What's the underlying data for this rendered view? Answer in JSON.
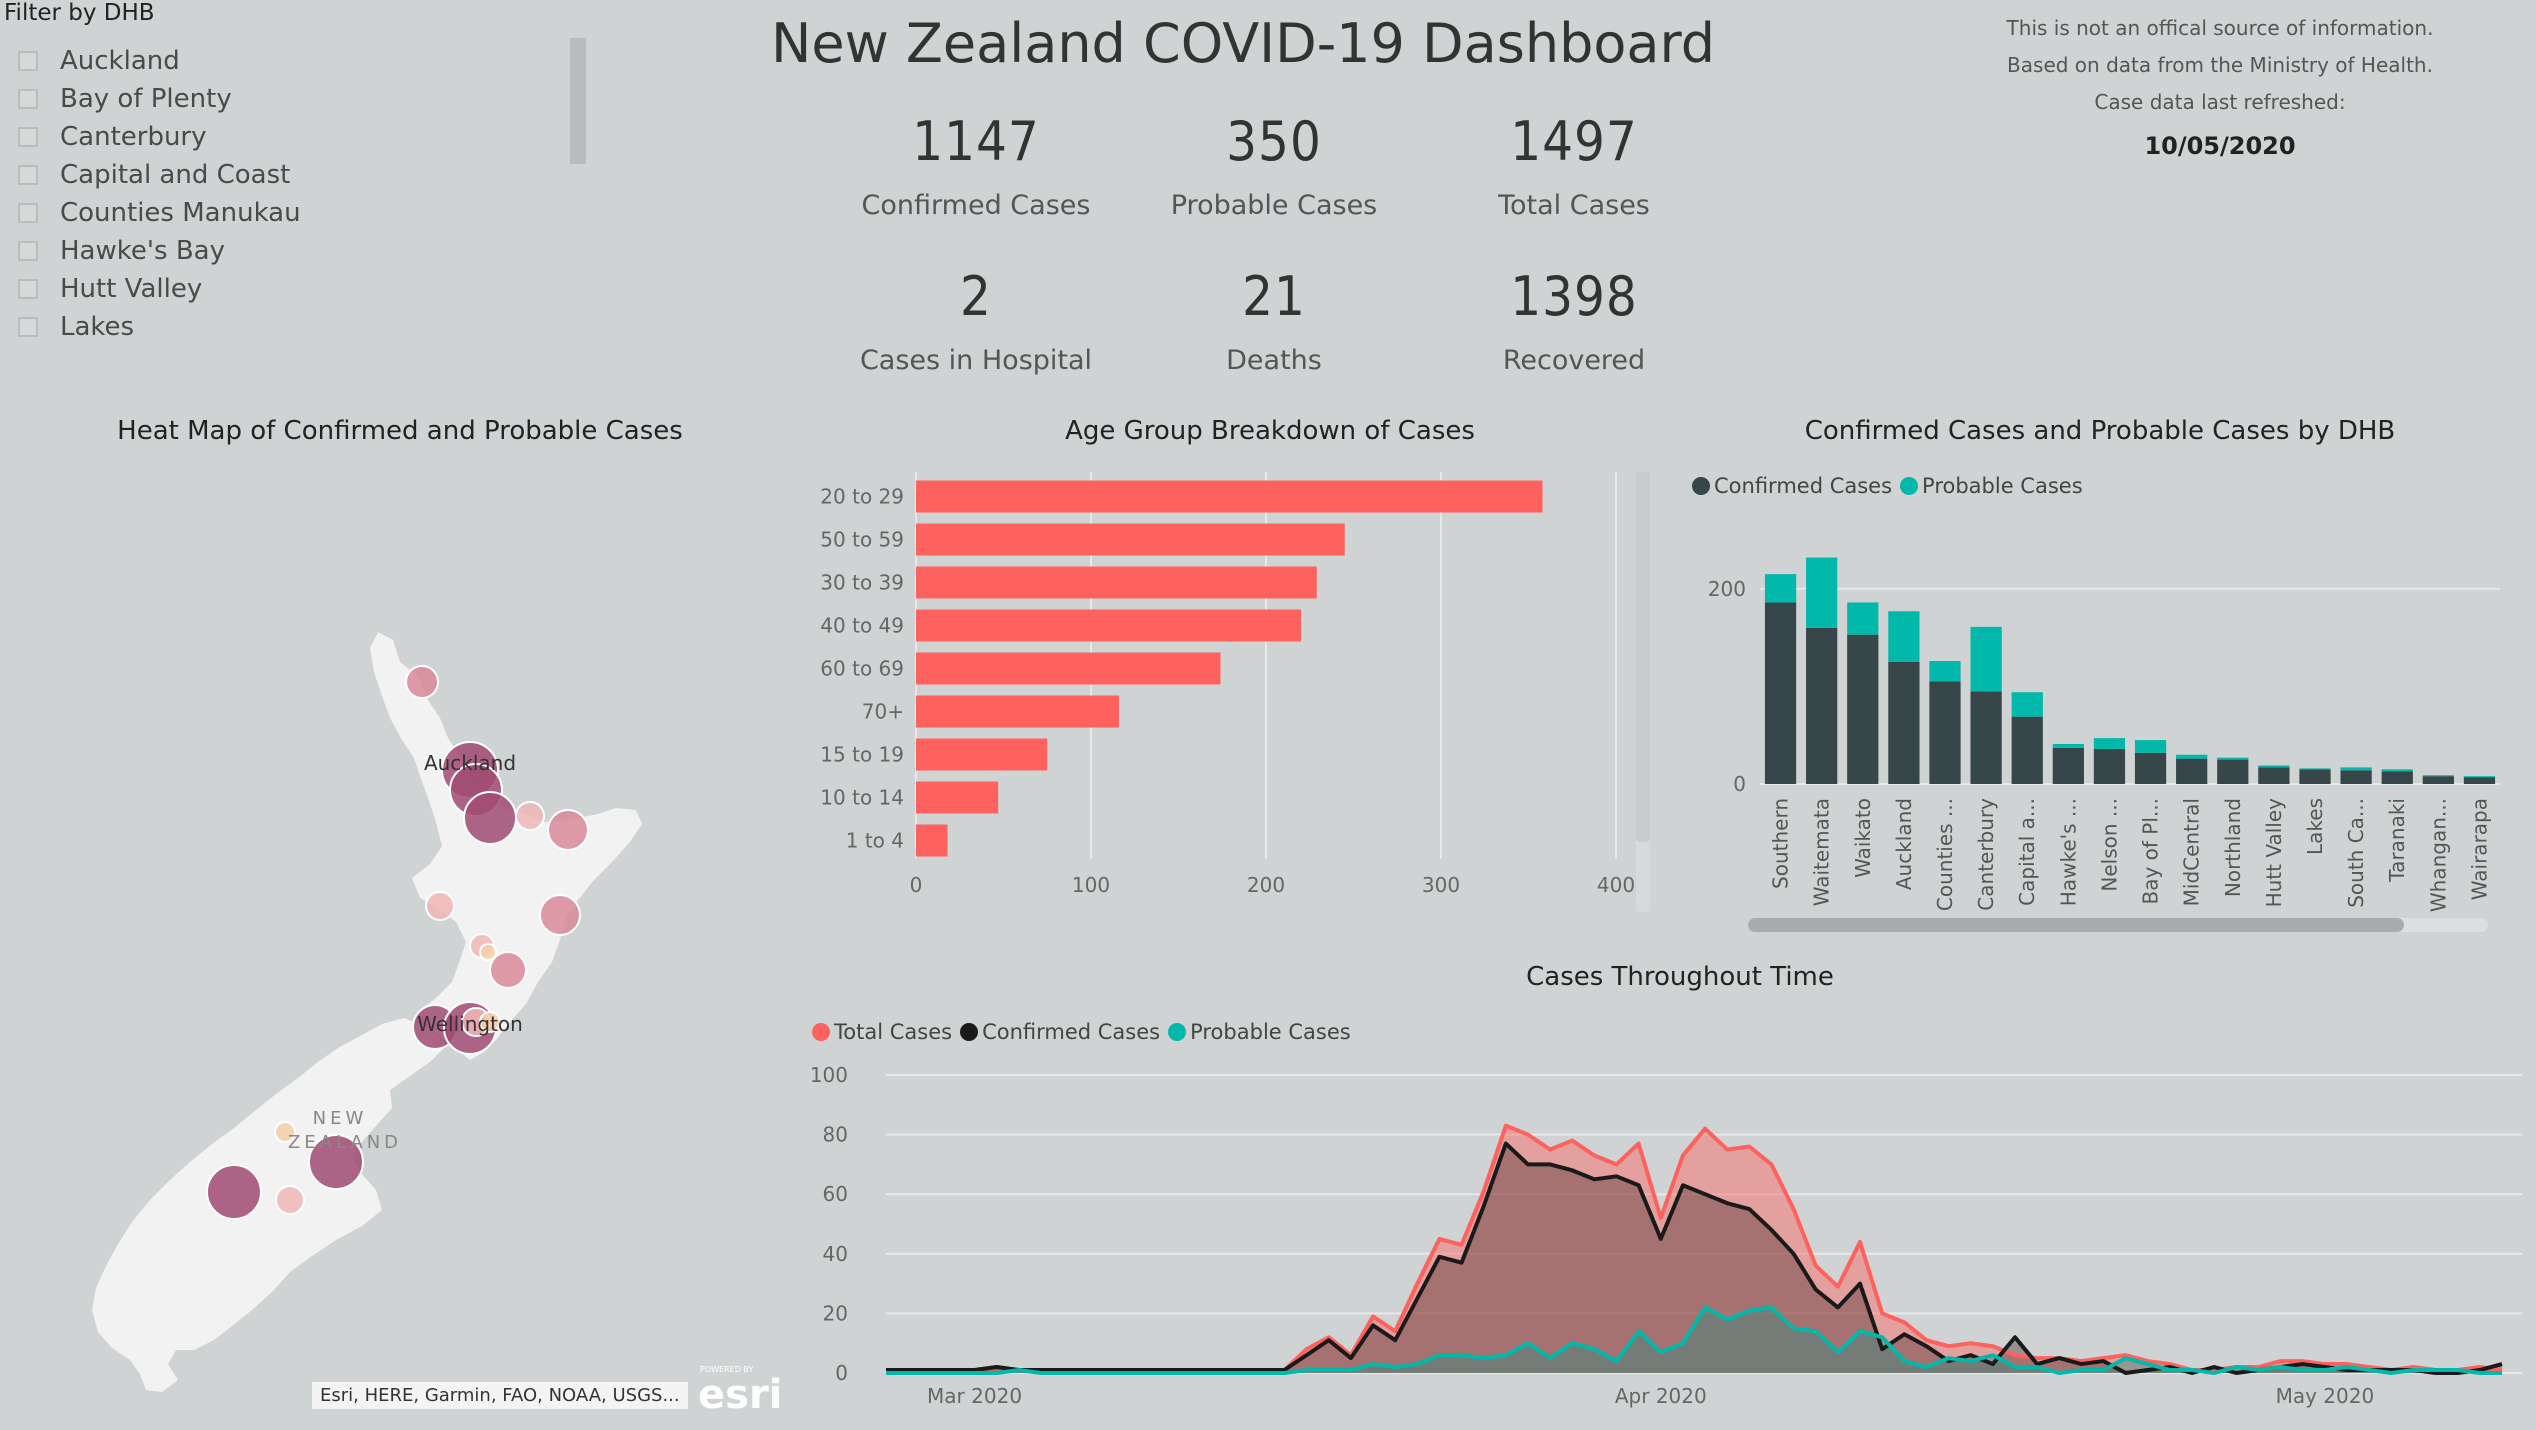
{
  "slicer": {
    "title": "Filter by DHB",
    "items": [
      "Auckland",
      "Bay of Plenty",
      "Canterbury",
      "Capital and Coast",
      "Counties Manukau",
      "Hawke's Bay",
      "Hutt Valley",
      "Lakes"
    ]
  },
  "header": {
    "title": "New Zealand COVID-19 Dashboard"
  },
  "kpis": [
    {
      "value": "1147",
      "label": "Confirmed Cases"
    },
    {
      "value": "350",
      "label": "Probable Cases"
    },
    {
      "value": "1497",
      "label": "Total Cases"
    },
    {
      "value": "2",
      "label": "Cases in Hospital"
    },
    {
      "value": "21",
      "label": "Deaths"
    },
    {
      "value": "1398",
      "label": "Recovered"
    }
  ],
  "disclaimer": {
    "line1": "This is not an offical source of information.",
    "line2": "Based on data from the Ministry of Health.",
    "line3": "Case data last refreshed:",
    "date": "10/05/2020"
  },
  "map": {
    "title": "Heat Map of Confirmed and Probable Cases",
    "labels": {
      "auckland": "Auckland",
      "wellington": "Wellington",
      "country_line1": "NEW",
      "country_line2": "ZEALAND"
    },
    "attribution": "Esri, HERE, Garmin, FAO, NOAA, USGS...",
    "logo_small": "POWERED BY",
    "logo": "esri",
    "colors": {
      "land": "#f2f2f2",
      "high": "#a04a72",
      "mid": "#d98a98",
      "low": "#f0b6b6",
      "lowest": "#f4cfa8"
    }
  },
  "age_chart": {
    "title": "Age Group Breakdown of Cases",
    "chart_data": {
      "type": "bar",
      "orientation": "horizontal",
      "categories": [
        "20 to 29",
        "50 to 59",
        "30 to 39",
        "40 to 49",
        "60 to 69",
        "70+",
        "15 to 19",
        "10 to 14",
        "1 to 4"
      ],
      "values": [
        358,
        245,
        229,
        220,
        174,
        116,
        75,
        47,
        18
      ],
      "xlim": [
        0,
        400
      ],
      "ticks": [
        0,
        100,
        200,
        300,
        400
      ],
      "color": "#fd625e"
    }
  },
  "dhb_chart": {
    "title": "Confirmed Cases and Probable Cases by DHB",
    "legend": [
      "Confirmed Cases",
      "Probable Cases"
    ],
    "chart_data": {
      "type": "bar",
      "stacked": true,
      "categories": [
        "Southern",
        "Waitemata",
        "Waikato",
        "Auckland",
        "Counties ...",
        "Canterbury",
        "Capital a...",
        "Hawke's ...",
        "Nelson ...",
        "Bay of Pl...",
        "MidCentral",
        "Northland",
        "Hutt Valley",
        "Lakes",
        "South Ca...",
        "Taranaki",
        "Whangan...",
        "Wairarapa"
      ],
      "series": [
        {
          "name": "Confirmed Cases",
          "color": "#374649",
          "values": [
            186,
            160,
            153,
            125,
            105,
            95,
            69,
            37,
            36,
            32,
            26,
            25,
            17,
            15,
            14,
            13,
            8,
            7
          ]
        },
        {
          "name": "Probable Cases",
          "color": "#01b8aa",
          "values": [
            29,
            72,
            33,
            52,
            21,
            66,
            25,
            4,
            11,
            13,
            4,
            2,
            2,
            1,
            3,
            2,
            1,
            1
          ]
        }
      ],
      "ylim": [
        0,
        250
      ],
      "ticks": [
        0,
        200
      ]
    }
  },
  "time_chart": {
    "title": "Cases Throughout Time",
    "legend": [
      "Total Cases",
      "Confirmed Cases",
      "Probable Cases"
    ],
    "chart_data": {
      "type": "area",
      "x_start": "2020-02-26",
      "x_end": "2020-05-10",
      "x_ticks": [
        "Mar 2020",
        "Apr 2020",
        "May 2020"
      ],
      "ylim": [
        0,
        100
      ],
      "y_ticks": [
        0,
        20,
        40,
        60,
        80,
        100
      ],
      "series": [
        {
          "name": "Total Cases",
          "color": "#fd625e",
          "values": [
            1,
            1,
            1,
            1,
            1,
            2,
            1,
            1,
            1,
            1,
            1,
            1,
            1,
            1,
            1,
            1,
            1,
            1,
            1,
            8,
            12,
            6,
            19,
            14,
            30,
            45,
            43,
            61,
            83,
            80,
            75,
            78,
            73,
            70,
            77,
            52,
            73,
            82,
            75,
            76,
            70,
            55,
            36,
            29,
            44,
            20,
            17,
            11,
            9,
            10,
            9,
            6,
            5,
            5,
            4,
            5,
            6,
            4,
            3,
            1,
            1,
            2,
            2,
            4,
            4,
            3,
            3,
            2,
            1,
            2,
            1,
            1,
            2,
            1
          ]
        },
        {
          "name": "Confirmed Cases",
          "color": "#1a1a1a",
          "values": [
            1,
            1,
            1,
            1,
            1,
            2,
            1,
            1,
            1,
            1,
            1,
            1,
            1,
            1,
            1,
            1,
            1,
            1,
            1,
            6,
            11,
            5,
            16,
            11,
            25,
            39,
            37,
            56,
            77,
            70,
            70,
            68,
            65,
            66,
            63,
            45,
            63,
            60,
            57,
            55,
            48,
            40,
            28,
            22,
            30,
            8,
            13,
            9,
            4,
            6,
            3,
            12,
            3,
            5,
            3,
            4,
            0,
            1,
            2,
            0,
            2,
            0,
            1,
            2,
            3,
            2,
            1,
            1,
            1,
            1,
            0,
            0,
            1,
            3
          ]
        },
        {
          "name": "Probable Cases",
          "color": "#01b8aa",
          "values": [
            0,
            0,
            0,
            0,
            0,
            0,
            1,
            0,
            0,
            0,
            0,
            0,
            0,
            0,
            0,
            0,
            0,
            0,
            0,
            1,
            1,
            1,
            3,
            2,
            3,
            6,
            6,
            5,
            6,
            10,
            5,
            10,
            8,
            4,
            14,
            7,
            10,
            22,
            18,
            21,
            22,
            15,
            14,
            7,
            14,
            12,
            4,
            2,
            5,
            4,
            6,
            2,
            2,
            0,
            1,
            1,
            5,
            3,
            1,
            1,
            0,
            2,
            1,
            2,
            1,
            1,
            2,
            1,
            0,
            1,
            1,
            1,
            0,
            0
          ]
        }
      ]
    }
  }
}
